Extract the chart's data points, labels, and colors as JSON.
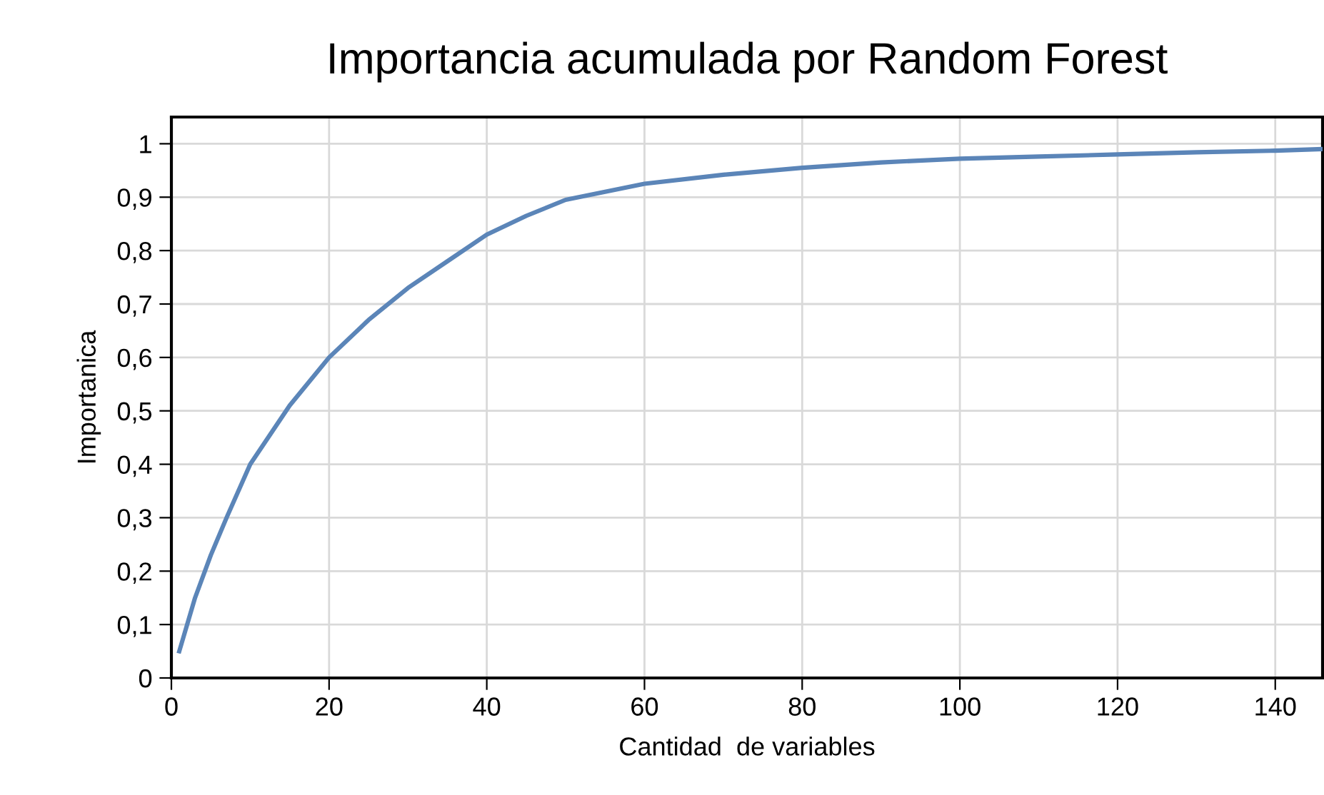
{
  "chart_data": {
    "type": "line",
    "title": "Importancia acumulada por Random Forest",
    "xlabel": "Cantidad  de variables",
    "ylabel": "Importanica",
    "x": [
      1,
      2,
      3,
      5,
      7,
      10,
      15,
      20,
      25,
      30,
      35,
      40,
      45,
      50,
      55,
      60,
      70,
      80,
      90,
      100,
      110,
      120,
      130,
      140,
      146
    ],
    "series": [
      {
        "color": "#5b85b8",
        "values": [
          0.05,
          0.1,
          0.15,
          0.23,
          0.3,
          0.4,
          0.51,
          0.6,
          0.67,
          0.73,
          0.78,
          0.83,
          0.865,
          0.895,
          0.91,
          0.925,
          0.942,
          0.955,
          0.965,
          0.972,
          0.976,
          0.98,
          0.984,
          0.987,
          0.99
        ]
      }
    ],
    "xlim": [
      0,
      146
    ],
    "ylim": [
      0,
      1.05
    ],
    "xticks": [
      0,
      20,
      40,
      60,
      80,
      100,
      120,
      140
    ],
    "yticks": [
      {
        "value": 0,
        "label": "0"
      },
      {
        "value": 0.1,
        "label": "0,1"
      },
      {
        "value": 0.2,
        "label": "0,2"
      },
      {
        "value": 0.3,
        "label": "0,3"
      },
      {
        "value": 0.4,
        "label": "0,4"
      },
      {
        "value": 0.5,
        "label": "0,5"
      },
      {
        "value": 0.6,
        "label": "0,6"
      },
      {
        "value": 0.7,
        "label": "0,7"
      },
      {
        "value": 0.8,
        "label": "0,8"
      },
      {
        "value": 0.9,
        "label": "0,9"
      },
      {
        "value": 1,
        "label": "1"
      }
    ],
    "grid": true,
    "legend": false,
    "marker": "none",
    "line_style": "solid"
  }
}
